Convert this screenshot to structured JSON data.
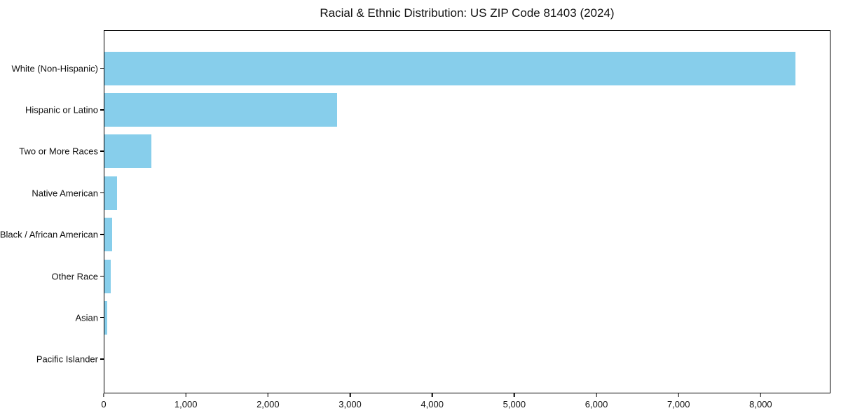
{
  "chart_data": {
    "type": "bar",
    "orientation": "horizontal",
    "title": "Racial & Ethnic Distribution: US ZIP Code 81403 (2024)",
    "categories": [
      "White (Non-Hispanic)",
      "Hispanic or Latino",
      "Two or More Races",
      "Native American",
      "Black / African American",
      "Other Race",
      "Asian",
      "Pacific Islander"
    ],
    "values": [
      8430,
      2840,
      575,
      150,
      90,
      75,
      30,
      0
    ],
    "xlabel": "",
    "ylabel": "",
    "xlim": [
      0,
      8850
    ],
    "x_ticks": [
      0,
      1000,
      2000,
      3000,
      4000,
      5000,
      6000,
      7000,
      8000
    ],
    "x_tick_labels": [
      "0",
      "1,000",
      "2,000",
      "3,000",
      "4,000",
      "5,000",
      "6,000",
      "7,000",
      "8,000"
    ],
    "bar_color": "#87CEEB",
    "grid": false,
    "legend": null,
    "background_color": "#ffffff"
  }
}
